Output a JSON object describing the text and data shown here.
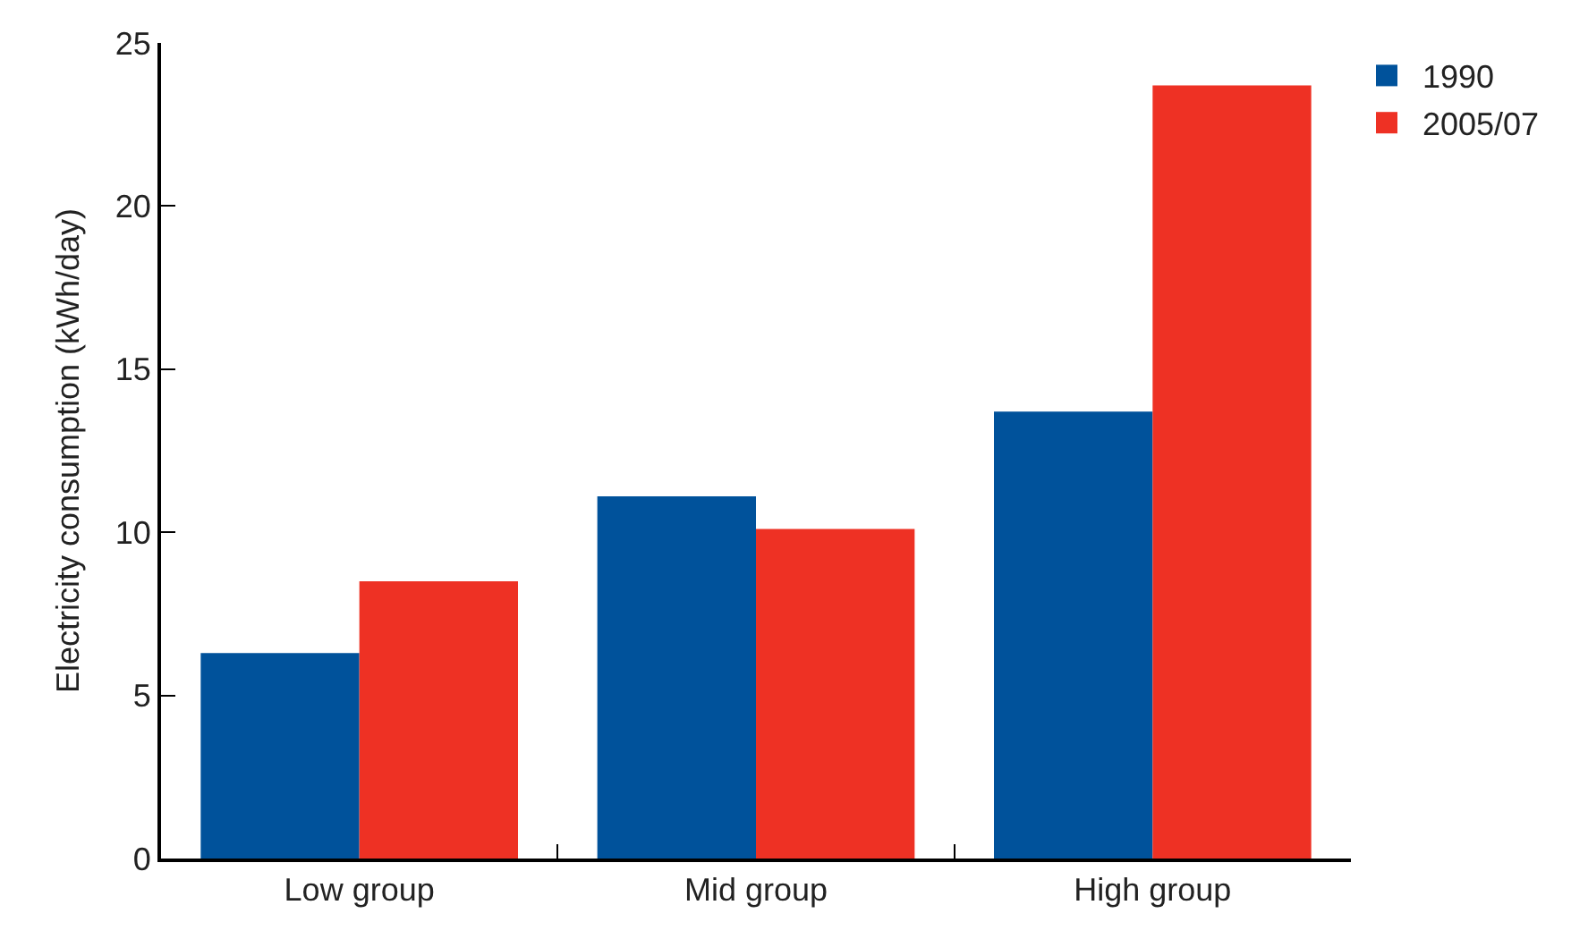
{
  "chart_data": {
    "type": "bar",
    "ylabel": "Electricity consumption (kWh/day)",
    "categories": [
      "Low group",
      "Mid group",
      "High group"
    ],
    "series": [
      {
        "name": "1990",
        "color": "#00529b",
        "values": [
          6.3,
          11.1,
          13.7
        ]
      },
      {
        "name": "2005/07",
        "color": "#ee3124",
        "values": [
          8.5,
          10.1,
          23.7
        ]
      }
    ],
    "ylim": [
      0,
      25
    ],
    "yticks": [
      0,
      5,
      10,
      15,
      20,
      25
    ],
    "legend": "top right"
  }
}
